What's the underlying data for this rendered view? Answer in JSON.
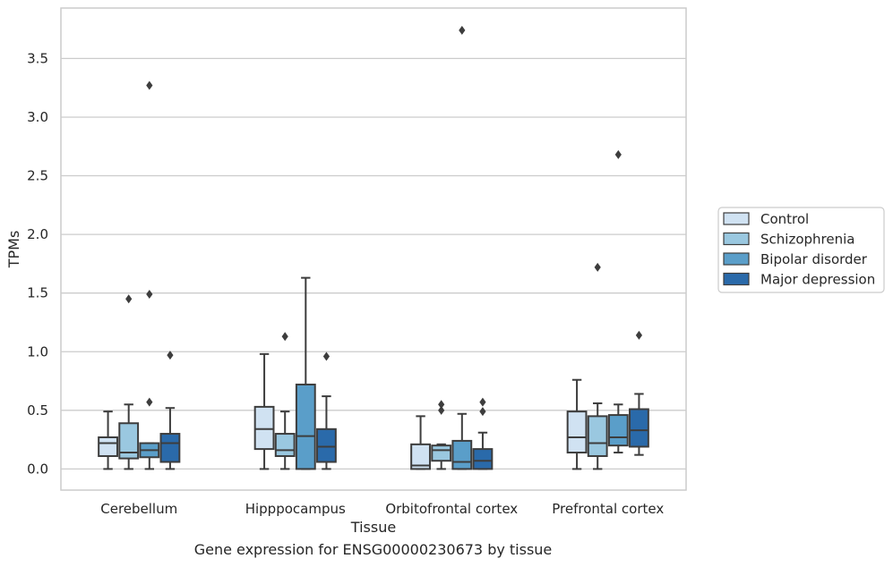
{
  "caption": "Gene expression for ENSG00000230673 by tissue",
  "chart_data": {
    "type": "box",
    "title": "",
    "xlabel": "Tissue",
    "ylabel": "TPMs",
    "ylim": [
      -0.18,
      3.93
    ],
    "yticks": [
      0.0,
      0.5,
      1.0,
      1.5,
      2.0,
      2.5,
      3.0,
      3.5
    ],
    "ytick_labels": [
      "0.0",
      "0.5",
      "1.0",
      "1.5",
      "2.0",
      "2.5",
      "3.0",
      "3.5"
    ],
    "grid": "horizontal",
    "legend_position": "right",
    "categories": [
      "Cerebellum",
      "Hipppocampus",
      "Orbitofrontal cortex",
      "Prefrontal cortex"
    ],
    "series": [
      {
        "name": "Control",
        "color": "#d0e2f2",
        "boxes": [
          {
            "whislo": 0.0,
            "q1": 0.11,
            "med": 0.22,
            "q3": 0.27,
            "whishi": 0.49,
            "fliers": []
          },
          {
            "whislo": 0.0,
            "q1": 0.17,
            "med": 0.34,
            "q3": 0.53,
            "whishi": 0.98,
            "fliers": []
          },
          {
            "whislo": 0.0,
            "q1": 0.0,
            "med": 0.03,
            "q3": 0.21,
            "whishi": 0.45,
            "fliers": []
          },
          {
            "whislo": 0.0,
            "q1": 0.14,
            "med": 0.27,
            "q3": 0.49,
            "whishi": 0.76,
            "fliers": []
          }
        ]
      },
      {
        "name": "Schizophrenia",
        "color": "#9ac8e0",
        "boxes": [
          {
            "whislo": 0.0,
            "q1": 0.09,
            "med": 0.14,
            "q3": 0.39,
            "whishi": 0.55,
            "fliers": [
              1.45
            ]
          },
          {
            "whislo": 0.0,
            "q1": 0.11,
            "med": 0.16,
            "q3": 0.3,
            "whishi": 0.49,
            "fliers": [
              1.13
            ]
          },
          {
            "whislo": 0.0,
            "q1": 0.07,
            "med": 0.16,
            "q3": 0.2,
            "whishi": 0.21,
            "fliers": [
              0.5,
              0.55
            ]
          },
          {
            "whislo": 0.0,
            "q1": 0.11,
            "med": 0.22,
            "q3": 0.45,
            "whishi": 0.56,
            "fliers": [
              1.72
            ]
          }
        ]
      },
      {
        "name": "Bipolar disorder",
        "color": "#5a9ec9",
        "boxes": [
          {
            "whislo": 0.0,
            "q1": 0.1,
            "med": 0.16,
            "q3": 0.22,
            "whishi": 0.22,
            "fliers": [
              0.57,
              1.49,
              3.27
            ]
          },
          {
            "whislo": 0.0,
            "q1": 0.0,
            "med": 0.28,
            "q3": 0.72,
            "whishi": 1.63,
            "fliers": []
          },
          {
            "whislo": 0.0,
            "q1": 0.0,
            "med": 0.06,
            "q3": 0.24,
            "whishi": 0.47,
            "fliers": [
              3.74
            ]
          },
          {
            "whislo": 0.14,
            "q1": 0.2,
            "med": 0.27,
            "q3": 0.46,
            "whishi": 0.55,
            "fliers": [
              2.68
            ]
          }
        ]
      },
      {
        "name": "Major depression",
        "color": "#2a6aaa",
        "boxes": [
          {
            "whislo": 0.0,
            "q1": 0.06,
            "med": 0.22,
            "q3": 0.3,
            "whishi": 0.52,
            "fliers": [
              0.97
            ]
          },
          {
            "whislo": 0.0,
            "q1": 0.06,
            "med": 0.19,
            "q3": 0.34,
            "whishi": 0.62,
            "fliers": [
              0.96
            ]
          },
          {
            "whislo": 0.0,
            "q1": 0.0,
            "med": 0.07,
            "q3": 0.17,
            "whishi": 0.31,
            "fliers": [
              0.49,
              0.57
            ]
          },
          {
            "whislo": 0.12,
            "q1": 0.19,
            "med": 0.33,
            "q3": 0.51,
            "whishi": 0.64,
            "fliers": [
              1.14
            ]
          }
        ]
      }
    ]
  }
}
